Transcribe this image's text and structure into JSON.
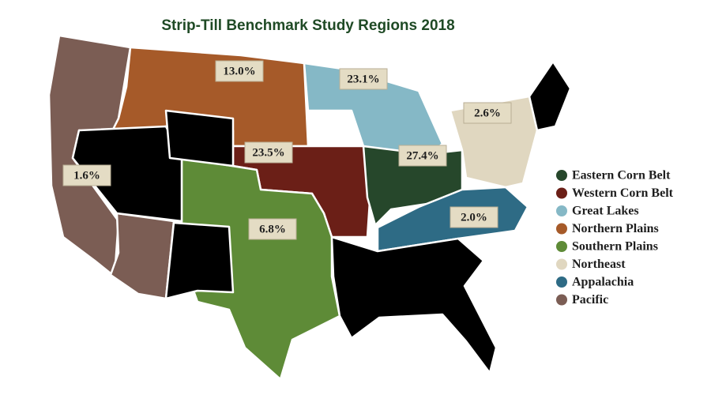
{
  "title": "Strip-Till Benchmark Study Regions 2018",
  "regions": [
    {
      "name": "Eastern Corn Belt",
      "color": "#26472b",
      "label": "27.4%"
    },
    {
      "name": "Western Corn Belt",
      "color": "#6b1f17",
      "label": "23.5%"
    },
    {
      "name": "Great Lakes",
      "color": "#85b8c6",
      "label": "23.1%"
    },
    {
      "name": "Northern Plains",
      "color": "#a65a29",
      "label": "13.0%"
    },
    {
      "name": "Southern Plains",
      "color": "#5e8b37",
      "label": "6.8%"
    },
    {
      "name": "Northeast",
      "color": "#e0d7c0",
      "label": "2.6%"
    },
    {
      "name": "Appalachia",
      "color": "#2e6b85",
      "label": "2.0%"
    },
    {
      "name": "Pacific",
      "color": "#7b5d54",
      "label": "1.6%"
    }
  ]
}
